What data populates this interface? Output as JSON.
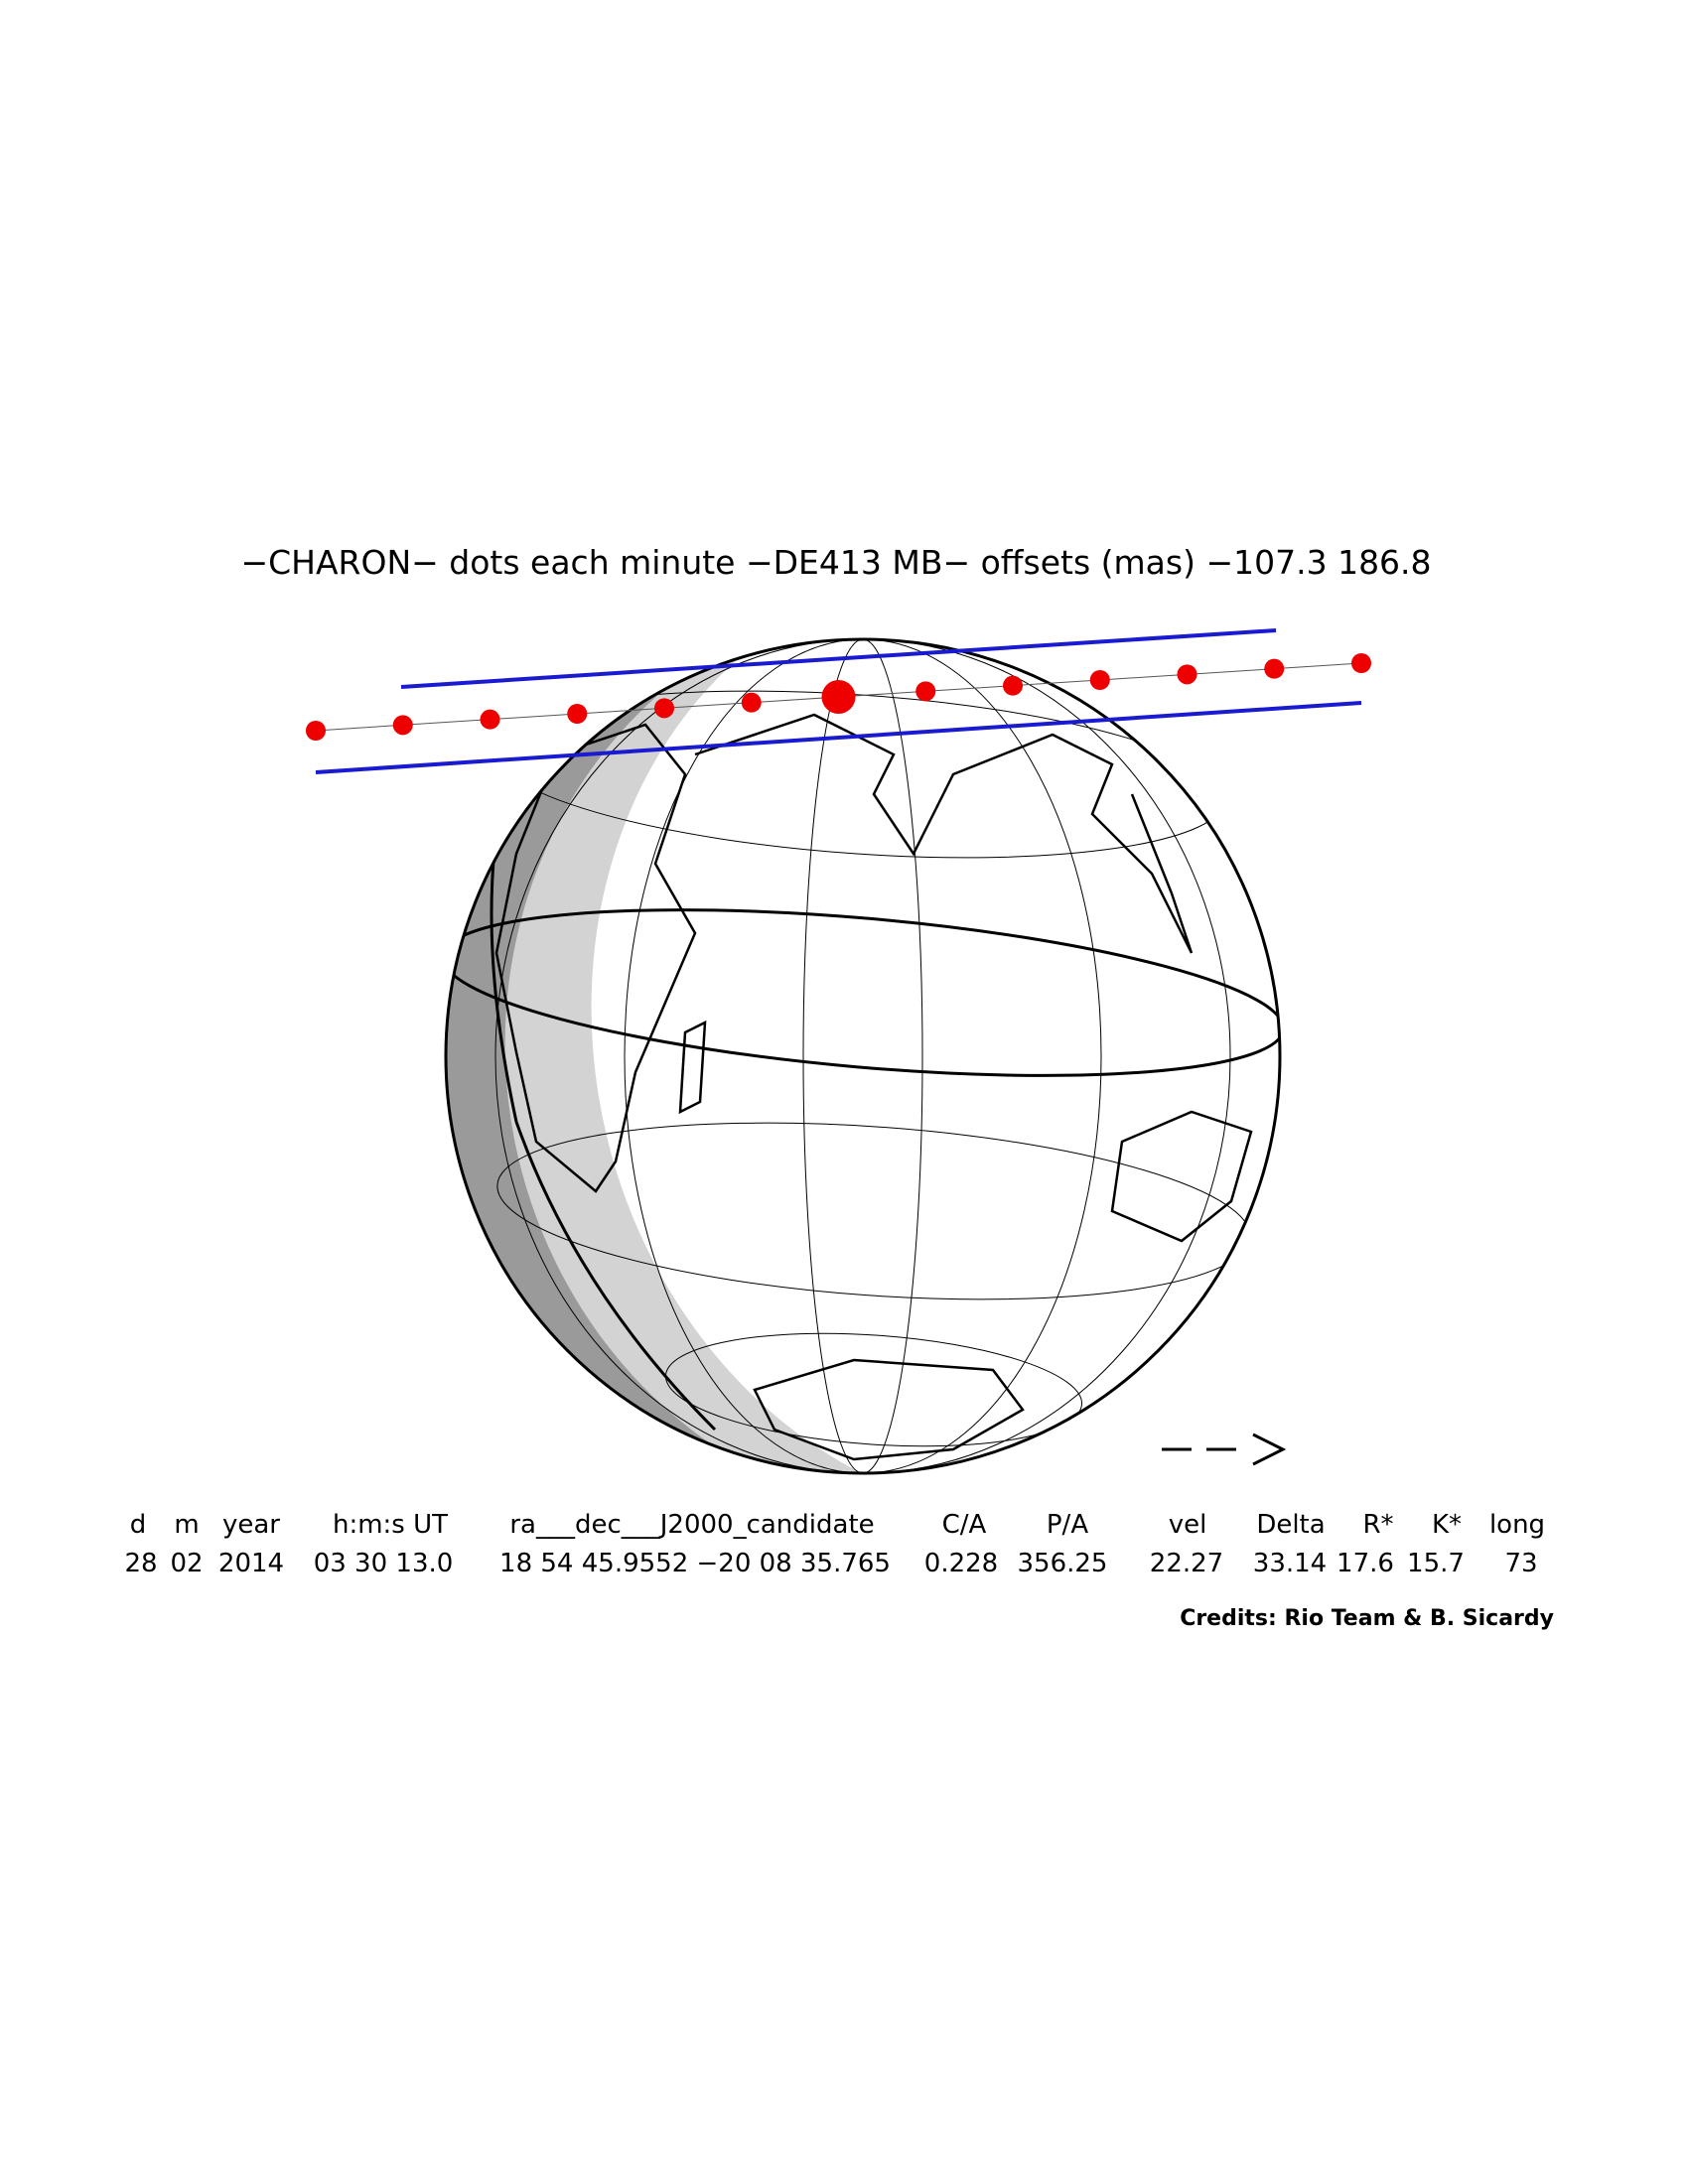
{
  "header": {
    "title": "−CHARON− dots each minute −DE413 MB− offsets (mas) −107.3   186.8"
  },
  "table": {
    "headers": [
      "d",
      "m",
      "year",
      "h:m:s UT",
      "ra___dec___J2000_candidate",
      "C/A",
      "P/A",
      "vel",
      "Delta",
      "R*",
      "K*",
      "long"
    ],
    "values": [
      "28",
      "02",
      "2014",
      "03 30 13.0",
      "18 54 45.9552 −20 08 35.765",
      "0.228",
      "356.25",
      "22.27",
      "33.14",
      "17.6",
      "15.7",
      "73"
    ]
  },
  "credits": "Credits: Rio Team & B. Sicardy"
}
